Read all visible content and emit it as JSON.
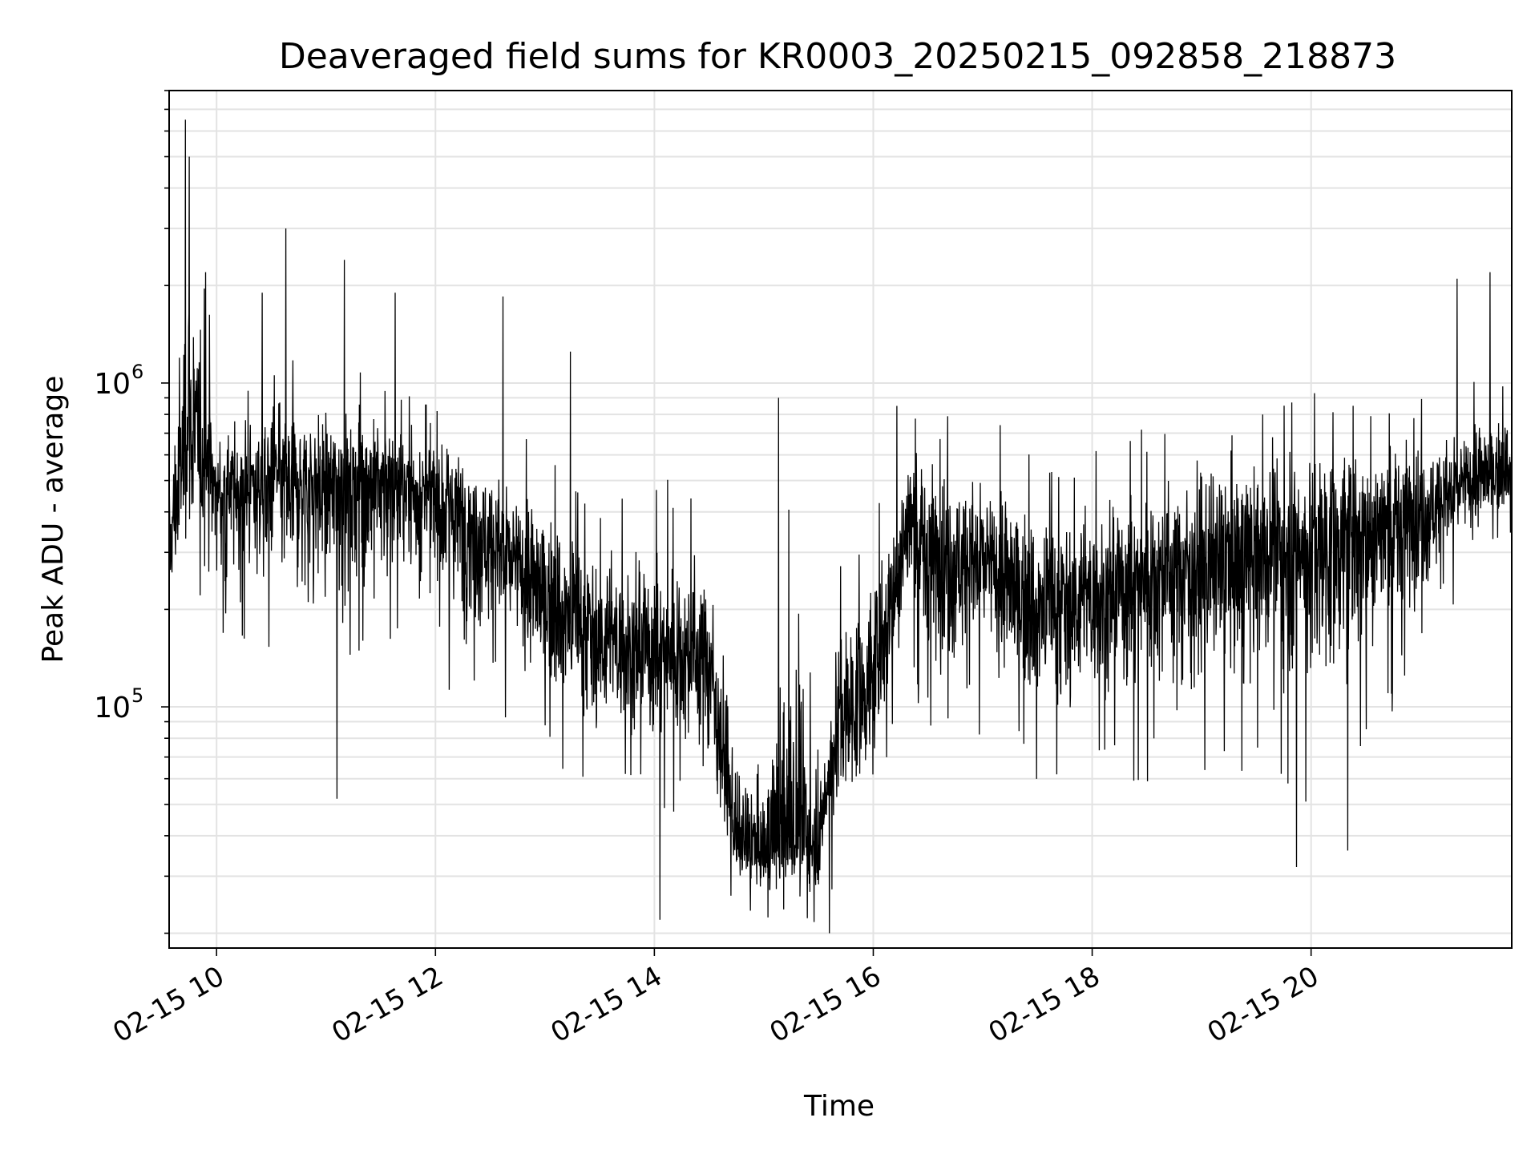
{
  "chart_data": {
    "type": "line",
    "title": "Deaveraged field sums for KR0003_20250215_092858_218873",
    "xlabel": "Time",
    "ylabel": "Peak ADU - average",
    "yscale": "log",
    "ylim": [
      18000,
      8000000
    ],
    "xlim": [
      "2025-02-15 09:34",
      "2025-02-15 21:50"
    ],
    "x_ticks": [
      {
        "value": "2025-02-15 10:00",
        "label": "02-15 10"
      },
      {
        "value": "2025-02-15 12:00",
        "label": "02-15 12"
      },
      {
        "value": "2025-02-15 14:00",
        "label": "02-15 14"
      },
      {
        "value": "2025-02-15 16:00",
        "label": "02-15 16"
      },
      {
        "value": "2025-02-15 18:00",
        "label": "02-15 18"
      },
      {
        "value": "2025-02-15 20:00",
        "label": "02-15 20"
      }
    ],
    "y_ticks": [
      {
        "value": 100000,
        "base": "10",
        "exp": "5"
      },
      {
        "value": 1000000,
        "base": "10",
        "exp": "6"
      }
    ],
    "grid": true,
    "line_color": "#000000",
    "series": [
      {
        "envelope": [
          {
            "x": "2025-02-15 09:34",
            "median": 300000,
            "low": 150000,
            "high": 650000
          },
          {
            "x": "2025-02-15 09:44",
            "median": 700000,
            "low": 250000,
            "high": 6500000
          },
          {
            "x": "2025-02-15 10:00",
            "median": 450000,
            "low": 180000,
            "high": 1000000
          },
          {
            "x": "2025-02-15 10:30",
            "median": 500000,
            "low": 150000,
            "high": 1200000
          },
          {
            "x": "2025-02-15 11:00",
            "median": 500000,
            "low": 100000,
            "high": 1100000
          },
          {
            "x": "2025-02-15 11:30",
            "median": 500000,
            "low": 150000,
            "high": 1100000
          },
          {
            "x": "2025-02-15 12:00",
            "median": 450000,
            "low": 120000,
            "high": 900000
          },
          {
            "x": "2025-02-15 12:30",
            "median": 330000,
            "low": 100000,
            "high": 800000
          },
          {
            "x": "2025-02-15 13:00",
            "median": 220000,
            "low": 70000,
            "high": 600000
          },
          {
            "x": "2025-02-15 13:30",
            "median": 160000,
            "low": 55000,
            "high": 500000
          },
          {
            "x": "2025-02-15 14:00",
            "median": 150000,
            "low": 50000,
            "high": 500000
          },
          {
            "x": "2025-02-15 14:30",
            "median": 140000,
            "low": 45000,
            "high": 450000
          },
          {
            "x": "2025-02-15 14:45",
            "median": 38000,
            "low": 22000,
            "high": 90000
          },
          {
            "x": "2025-02-15 15:00",
            "median": 36000,
            "low": 22000,
            "high": 70000
          },
          {
            "x": "2025-02-15 15:15",
            "median": 38000,
            "low": 22000,
            "high": 500000
          },
          {
            "x": "2025-02-15 15:30",
            "median": 38000,
            "low": 21000,
            "high": 70000
          },
          {
            "x": "2025-02-15 15:40",
            "median": 90000,
            "low": 30000,
            "high": 250000
          },
          {
            "x": "2025-02-15 16:00",
            "median": 120000,
            "low": 40000,
            "high": 400000
          },
          {
            "x": "2025-02-15 16:20",
            "median": 400000,
            "low": 120000,
            "high": 900000
          },
          {
            "x": "2025-02-15 16:30",
            "median": 300000,
            "low": 80000,
            "high": 800000
          },
          {
            "x": "2025-02-15 17:00",
            "median": 280000,
            "low": 80000,
            "high": 800000
          },
          {
            "x": "2025-02-15 17:30",
            "median": 200000,
            "low": 60000,
            "high": 600000
          },
          {
            "x": "2025-02-15 18:00",
            "median": 220000,
            "low": 60000,
            "high": 700000
          },
          {
            "x": "2025-02-15 18:30",
            "median": 260000,
            "low": 60000,
            "high": 700000
          },
          {
            "x": "2025-02-15 19:00",
            "median": 280000,
            "low": 60000,
            "high": 800000
          },
          {
            "x": "2025-02-15 19:30",
            "median": 300000,
            "low": 60000,
            "high": 800000
          },
          {
            "x": "2025-02-15 20:00",
            "median": 330000,
            "low": 50000,
            "high": 900000
          },
          {
            "x": "2025-02-15 20:30",
            "median": 370000,
            "low": 60000,
            "high": 900000
          },
          {
            "x": "2025-02-15 21:00",
            "median": 400000,
            "low": 150000,
            "high": 900000
          },
          {
            "x": "2025-02-15 21:30",
            "median": 500000,
            "low": 250000,
            "high": 1000000
          },
          {
            "x": "2025-02-15 21:50",
            "median": 550000,
            "low": 350000,
            "high": 1000000
          }
        ],
        "spikes": [
          {
            "x": "2025-02-15 09:43",
            "y": 6500000
          },
          {
            "x": "2025-02-15 09:45",
            "y": 5000000
          },
          {
            "x": "2025-02-15 09:54",
            "y": 2200000
          },
          {
            "x": "2025-02-15 10:25",
            "y": 1900000
          },
          {
            "x": "2025-02-15 10:38",
            "y": 3000000
          },
          {
            "x": "2025-02-15 11:10",
            "y": 2400000
          },
          {
            "x": "2025-02-15 11:38",
            "y": 1900000
          },
          {
            "x": "2025-02-15 12:37",
            "y": 1850000
          },
          {
            "x": "2025-02-15 13:14",
            "y": 1250000
          },
          {
            "x": "2025-02-15 15:08",
            "y": 900000
          },
          {
            "x": "2025-02-15 16:13",
            "y": 850000
          },
          {
            "x": "2025-02-15 21:20",
            "y": 2100000
          },
          {
            "x": "2025-02-15 21:38",
            "y": 2200000
          },
          {
            "x": "2025-02-15 11:06",
            "y": 52000
          },
          {
            "x": "2025-02-15 14:03",
            "y": 22000
          },
          {
            "x": "2025-02-15 15:36",
            "y": 20000
          },
          {
            "x": "2025-02-15 19:52",
            "y": 32000
          },
          {
            "x": "2025-02-15 20:20",
            "y": 36000
          }
        ]
      }
    ]
  }
}
